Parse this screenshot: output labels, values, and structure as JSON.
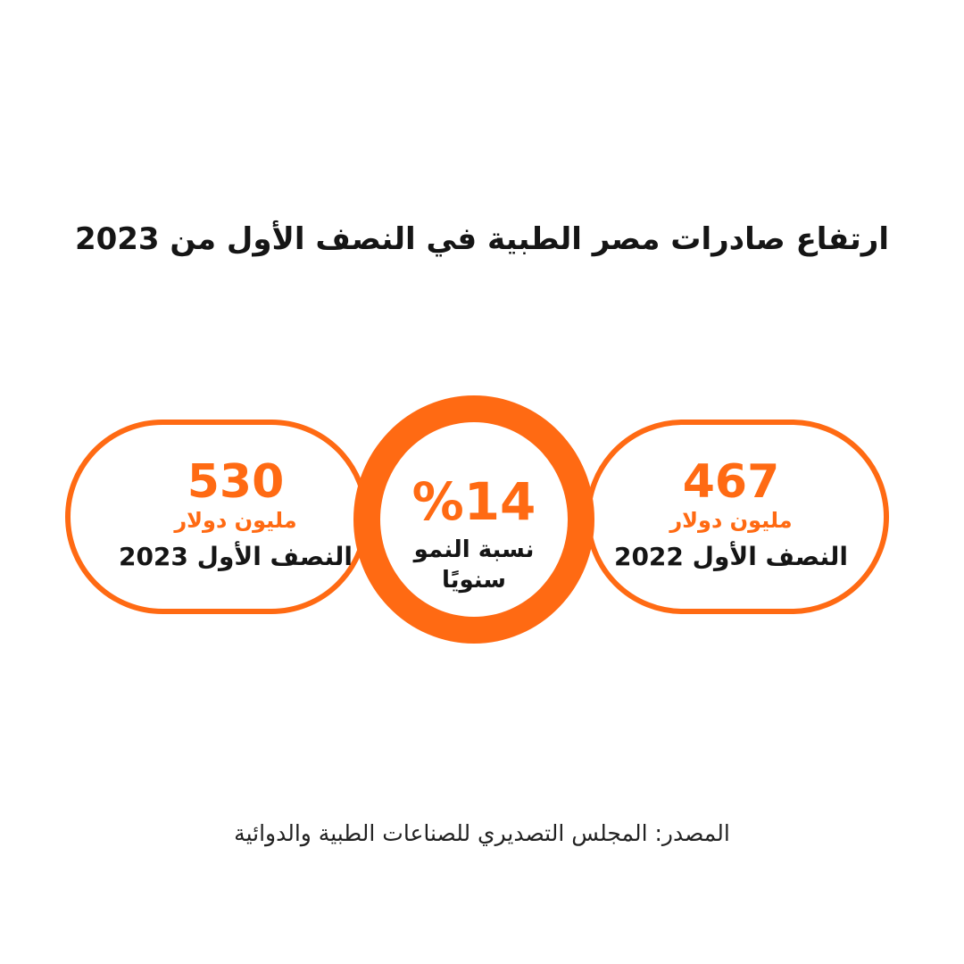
{
  "title": "ارتفاع صادرات مصر الطبية في النصف الأول من 2023",
  "stats": {
    "h1_2023": {
      "value": "530",
      "unit": "مليون دولار",
      "period": "النصف الأول 2023"
    },
    "h1_2022": {
      "value": "467",
      "unit": "مليون دولار",
      "period": "النصف الأول 2022"
    },
    "growth": {
      "value": "%14",
      "label": "نسبة النمو سنويًا"
    }
  },
  "source": "المصدر: المجلس التصديري للصناعات الطبية والدوائية",
  "colors": {
    "accent": "#ff6a13",
    "text": "#151515",
    "background": "#ffffff"
  }
}
